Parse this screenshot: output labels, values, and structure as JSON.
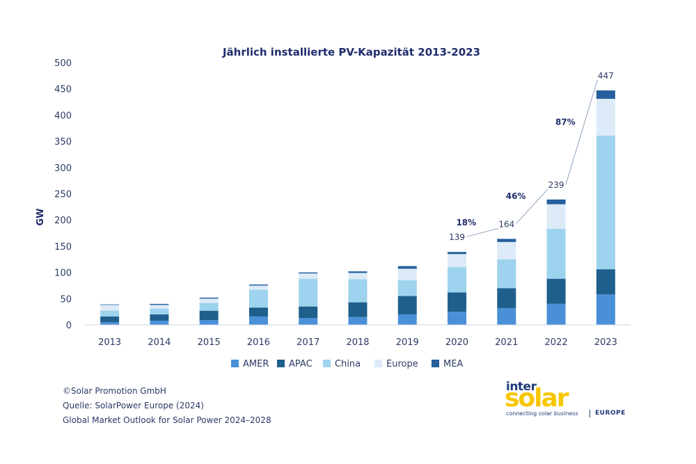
{
  "chart_data": {
    "type": "bar",
    "stacked": true,
    "title": "Jährlich installierte PV-Kapazität 2013-2023",
    "ylabel": "GW",
    "xlabel": "",
    "ylim": [
      0,
      500
    ],
    "yticks": [
      0,
      50,
      100,
      150,
      200,
      250,
      300,
      350,
      400,
      450,
      500
    ],
    "categories": [
      "2013",
      "2014",
      "2015",
      "2016",
      "2017",
      "2018",
      "2019",
      "2020",
      "2021",
      "2022",
      "2023"
    ],
    "series": [
      {
        "name": "AMER",
        "color": "#4a90d9",
        "values": [
          5,
          8,
          9,
          16,
          13,
          15,
          20,
          25,
          32,
          40,
          58
        ]
      },
      {
        "name": "APAC",
        "color": "#1e5f8c",
        "values": [
          11,
          12,
          18,
          17,
          22,
          28,
          35,
          37,
          38,
          48,
          48
        ]
      },
      {
        "name": "China",
        "color": "#9dd3ee",
        "values": [
          11,
          11,
          15,
          34,
          53,
          44,
          30,
          48,
          55,
          95,
          255
        ]
      },
      {
        "name": "Europe",
        "color": "#dcebf7",
        "values": [
          11,
          7,
          8,
          8,
          10,
          12,
          22,
          25,
          33,
          47,
          70
        ]
      },
      {
        "name": "MEA",
        "color": "#255f9e",
        "values": [
          1,
          2,
          2,
          2,
          2,
          3,
          5,
          4,
          6,
          9,
          16
        ]
      }
    ],
    "totals": {
      "2020": "139",
      "2021": "164",
      "2022": "239",
      "2023": "447"
    },
    "growth_annotations": [
      {
        "label": "18%",
        "from": "2020",
        "to": "2021"
      },
      {
        "label": "46%",
        "from": "2021",
        "to": "2022"
      },
      {
        "label": "87%",
        "from": "2022",
        "to": "2023"
      }
    ],
    "legend_position": "bottom",
    "grid": false
  },
  "footer": {
    "copyright": "©Solar Promotion GmbH",
    "source": "Quelle: SolarPower Europe (2024)",
    "publication": "Global Market Outlook for Solar Power 2024–2028"
  },
  "logo": {
    "inter": "inter",
    "solar": "solar",
    "tagline": "connecting solar business",
    "region": "EUROPE"
  }
}
